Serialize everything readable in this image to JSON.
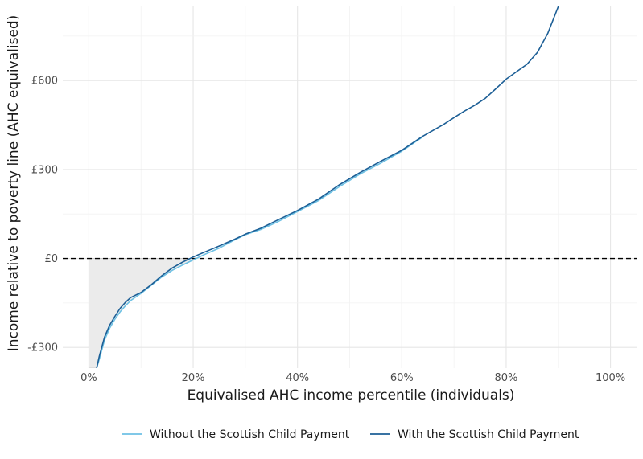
{
  "chart_data": {
    "type": "line",
    "xlabel": "Equivalised AHC income percentile (individuals)",
    "ylabel": "Income relative to poverty line (AHC equivalised)",
    "x_ticks": [
      0,
      20,
      40,
      60,
      80,
      100
    ],
    "x_tick_labels": [
      "0%",
      "20%",
      "40%",
      "60%",
      "80%",
      "100%"
    ],
    "y_ticks": [
      -300,
      0,
      300,
      600
    ],
    "y_tick_labels": [
      "-£300",
      "£0",
      "£300",
      "£600"
    ],
    "xlim": [
      -5,
      105
    ],
    "ylim": [
      -370,
      850
    ],
    "grid": true,
    "reference_line": {
      "y": 0,
      "style": "dashed"
    },
    "shaded_region": {
      "description_x_range": [
        0,
        20
      ],
      "bounded_by": "Without the Scottish Child Payment"
    },
    "legend_position": "bottom",
    "series": [
      {
        "name": "Without the Scottish Child Payment",
        "color": "#6ec1e4",
        "x": [
          1.5,
          2,
          3,
          4,
          5,
          6,
          7,
          8,
          10,
          12,
          14,
          16,
          18,
          20,
          22,
          25,
          28,
          30,
          33,
          36,
          40,
          44,
          48,
          52,
          56,
          60,
          64
        ],
        "y": [
          -370,
          -340,
          -275,
          -235,
          -205,
          -180,
          -160,
          -142,
          -118,
          -90,
          -62,
          -40,
          -22,
          -5,
          12,
          35,
          63,
          80,
          98,
          122,
          158,
          195,
          242,
          285,
          322,
          362,
          410
        ]
      },
      {
        "name": "With the Scottish Child Payment",
        "color": "#1d5f96",
        "x": [
          1.5,
          2,
          3,
          4,
          5,
          6,
          7,
          8,
          10,
          12,
          14,
          16,
          18,
          20,
          22,
          25,
          28,
          30,
          33,
          36,
          40,
          44,
          48,
          52,
          56,
          60,
          64,
          66,
          68,
          70,
          72,
          74,
          76,
          78,
          80,
          82,
          84,
          86,
          88,
          90
        ],
        "y": [
          -370,
          -330,
          -265,
          -225,
          -195,
          -168,
          -148,
          -132,
          -115,
          -88,
          -58,
          -32,
          -12,
          5,
          20,
          42,
          65,
          82,
          102,
          128,
          162,
          200,
          248,
          290,
          328,
          365,
          412,
          432,
          452,
          475,
          497,
          517,
          540,
          572,
          605,
          630,
          655,
          695,
          760,
          850
        ]
      }
    ]
  }
}
